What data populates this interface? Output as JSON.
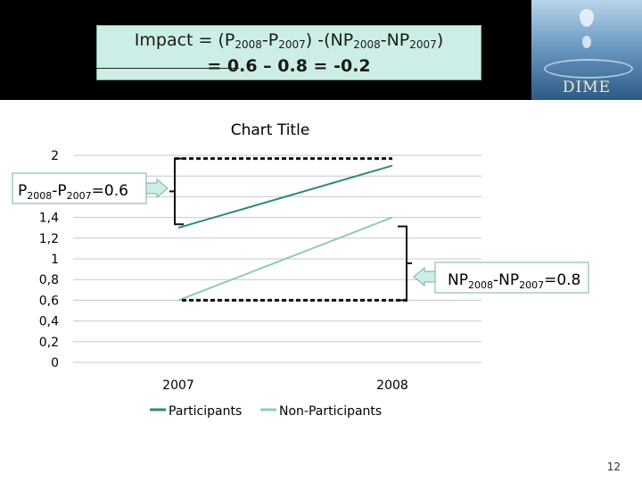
{
  "header": {
    "formula_line1": "Impact = (P2008-P2007) -(NP2008-NP2007)",
    "formula_line1_parts": [
      {
        "t": "Impact = (P",
        "s": false
      },
      {
        "t": "2008",
        "s": true
      },
      {
        "t": "-P",
        "s": false
      },
      {
        "t": "2007",
        "s": true
      },
      {
        "t": ") -(NP",
        "s": false
      },
      {
        "t": "2008",
        "s": true
      },
      {
        "t": "-NP",
        "s": false
      },
      {
        "t": "2007",
        "s": true
      },
      {
        "t": ")",
        "s": false
      }
    ],
    "formula_line2": "= 0.6 – 0.8 = -0.2",
    "logo_text": "DIME"
  },
  "chart_data": {
    "type": "line",
    "title": "Chart Title",
    "categories": [
      "2007",
      "2008"
    ],
    "y_tick_labels": [
      "2",
      "",
      "",
      "1,4",
      "1,2",
      "1",
      "0,8",
      "0,6",
      "0,4",
      "0,2",
      "0"
    ],
    "ylim": [
      0,
      2
    ],
    "grid": true,
    "legend_position": "bottom",
    "series": [
      {
        "name": "Participants",
        "values": [
          1.3,
          1.9
        ],
        "color": "#2e8b7a"
      },
      {
        "name": "Non-Participants",
        "values": [
          0.6,
          1.4
        ],
        "color": "#8fcbbd"
      }
    ],
    "annotations": [
      {
        "id": "p-diff",
        "text": "P2008-P2007=0.6",
        "parts": [
          {
            "t": "P",
            "s": false
          },
          {
            "t": "2008",
            "s": true
          },
          {
            "t": "-P",
            "s": false
          },
          {
            "t": "2007",
            "s": true
          },
          {
            "t": "=0.6",
            "s": false
          }
        ]
      },
      {
        "id": "np-diff",
        "text": "NP2008-NP2007=0.8",
        "parts": [
          {
            "t": "NP",
            "s": false
          },
          {
            "t": "2008",
            "s": true
          },
          {
            "t": "-NP",
            "s": false
          },
          {
            "t": "2007",
            "s": true
          },
          {
            "t": "=0.8",
            "s": false
          }
        ]
      }
    ]
  },
  "footer": {
    "page_number": "12"
  }
}
